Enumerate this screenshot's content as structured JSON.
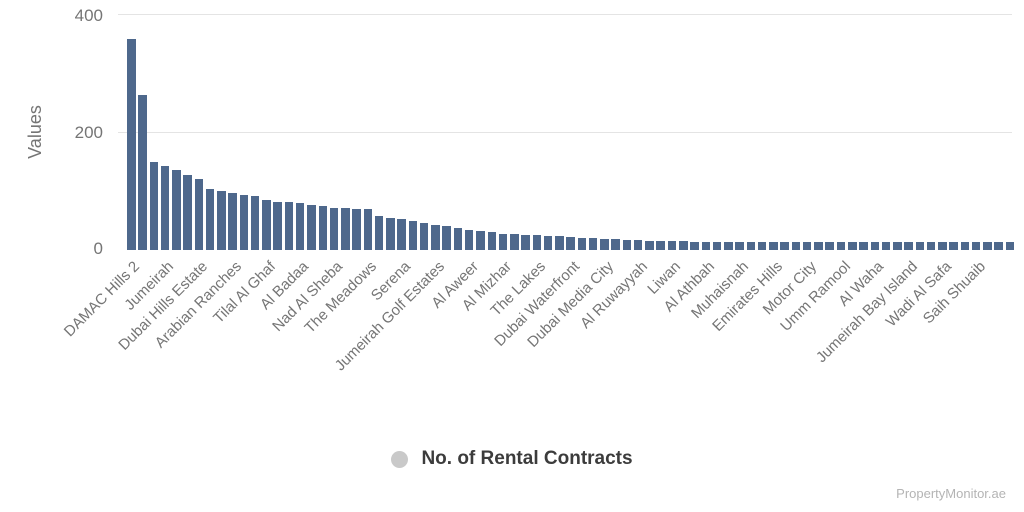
{
  "chart_data": {
    "type": "bar",
    "title": "",
    "ylabel": "Values",
    "yticks": [
      "400",
      "200",
      "0"
    ],
    "ylim": [
      0,
      400
    ],
    "grid": "horizontal",
    "legend_position": "bottom",
    "series_name": "No. of Rental Contracts",
    "label_every_nth_bar": 3,
    "categories": [
      "DAMAC Hills 2",
      "Jumeirah",
      "Dubai Hills Estate",
      "Arabian Ranches",
      "Tilal Al Ghaf",
      "Al Badaa",
      "Nad Al Sheba",
      "The Meadows",
      "Serena",
      "Jumeirah Golf Estates",
      "Al Aweer",
      "Al Mizhar",
      "The Lakes",
      "Dubai Waterfront",
      "Dubai Media City",
      "Al Ruwayyah",
      "Liwan",
      "Al Athbah",
      "Muhaisnah",
      "Emirates Hills",
      "Motor City",
      "Umm Ramool",
      "Al Waha",
      "Jumeirah Bay Island",
      "Wadi Al Safa",
      "Saih Shuaib"
    ],
    "values": [
      358,
      262,
      150,
      143,
      136,
      128,
      121,
      103,
      100,
      97,
      94,
      91,
      84,
      82,
      81,
      79,
      77,
      74,
      72,
      71,
      70,
      69,
      58,
      55,
      52,
      49,
      46,
      43,
      40,
      37,
      34,
      32,
      30,
      28,
      27,
      26,
      25,
      24,
      23,
      22,
      21,
      20,
      19,
      18,
      17,
      17,
      16,
      16,
      15,
      15,
      14,
      14,
      14,
      14,
      13,
      13,
      13,
      13,
      13,
      13,
      13,
      13,
      13,
      13,
      13,
      13,
      13,
      13,
      13,
      13,
      13,
      13,
      13,
      13,
      13,
      13,
      13,
      13,
      13
    ]
  },
  "legend": {
    "label": "No. of Rental Contracts"
  },
  "watermark": "PropertyMonitor.ae",
  "colors": {
    "bar": "#4e688c",
    "grid": "#e4e4e4",
    "axis_text": "#757575",
    "legend_text": "#3c3c3c",
    "legend_marker": "#c9c9c9",
    "watermark": "#b4b4b4"
  }
}
